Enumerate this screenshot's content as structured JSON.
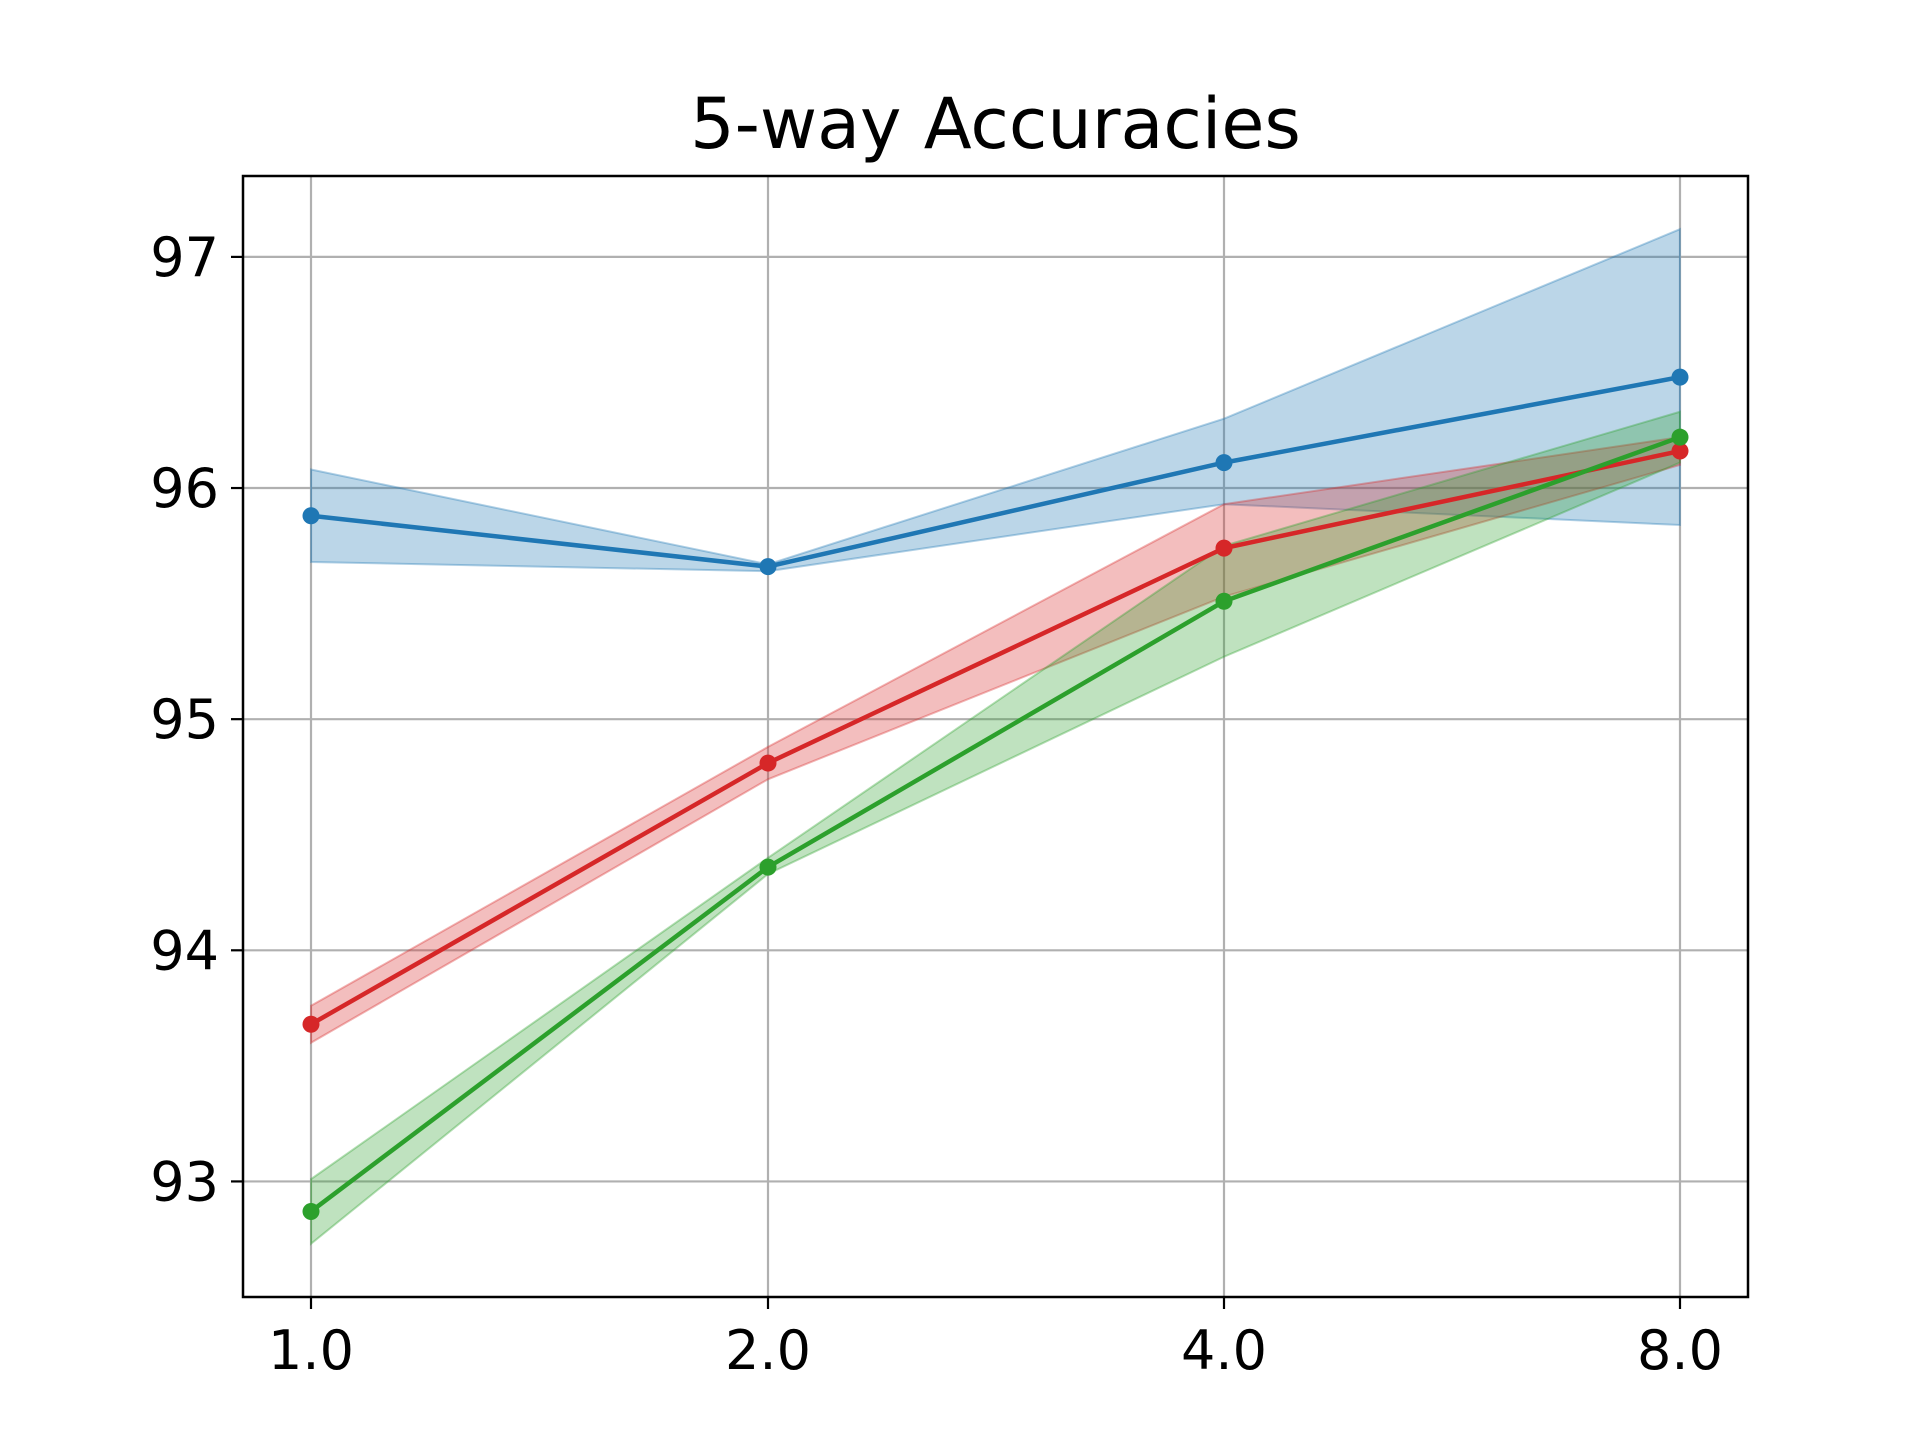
{
  "chart_data": {
    "type": "line",
    "title": "5-way Accuracies",
    "xlabel": "",
    "ylabel": "",
    "x_tick_labels": [
      "1.0",
      "2.0",
      "4.0",
      "8.0"
    ],
    "y_ticks": [
      93,
      94,
      95,
      96,
      97
    ],
    "ylim": [
      92.5,
      97.35
    ],
    "grid": true,
    "series": [
      {
        "color": "#1f77b4",
        "values": [
          95.88,
          95.66,
          96.11,
          96.48
        ],
        "lower": [
          95.68,
          95.64,
          95.93,
          95.84
        ],
        "upper": [
          96.08,
          95.67,
          96.3,
          97.12
        ]
      },
      {
        "color": "#d62728",
        "values": [
          93.68,
          94.81,
          95.74,
          96.16
        ],
        "lower": [
          93.6,
          94.74,
          95.53,
          96.1
        ],
        "upper": [
          93.76,
          94.88,
          95.93,
          96.22
        ]
      },
      {
        "color": "#2ca02c",
        "values": [
          92.87,
          94.36,
          95.51,
          96.22
        ],
        "lower": [
          92.73,
          94.33,
          95.27,
          96.11
        ],
        "upper": [
          93.01,
          94.4,
          95.75,
          96.33
        ]
      }
    ]
  }
}
